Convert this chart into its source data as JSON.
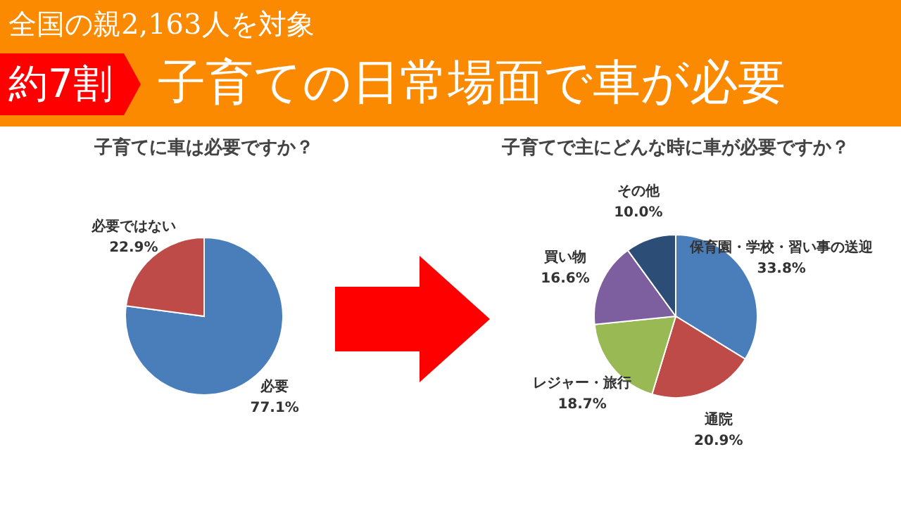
{
  "chart_data": [
    {
      "type": "pie",
      "title": "子育てに車は必要ですか？",
      "annotations": [
        "全国の親2,163人を対象",
        "約7割",
        "子育ての日常場面で車が必要"
      ],
      "categories": [
        "必要",
        "必要ではない"
      ],
      "values": [
        77.1,
        22.9
      ],
      "colors": [
        "#4a7ebb",
        "#be4b48"
      ],
      "value_labels": [
        "77.1%",
        "22.9%"
      ],
      "legend": false
    },
    {
      "type": "pie",
      "title": "子育てで主にどんな時に車が必要ですか？",
      "categories": [
        "保育園・学校・習い事の送迎",
        "通院",
        "レジャー・旅行",
        "買い物",
        "その他"
      ],
      "values": [
        33.8,
        20.9,
        18.7,
        16.6,
        10.0
      ],
      "colors": [
        "#4a7ebb",
        "#be4b48",
        "#98b954",
        "#7d5fa0",
        "#2c4d75"
      ],
      "value_labels": [
        "33.8%",
        "20.9%",
        "18.7%",
        "16.6%",
        "10.0%"
      ],
      "legend": false
    }
  ]
}
